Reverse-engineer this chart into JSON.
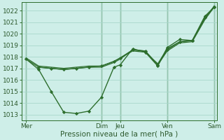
{
  "xlabel": "Pression niveau de la mer( hPa )",
  "bg_color": "#ceeee8",
  "grid_color": "#a8d8cc",
  "line_color": "#2d6e2d",
  "ylim": [
    1012.5,
    1022.7
  ],
  "yticks": [
    1013,
    1014,
    1015,
    1016,
    1017,
    1018,
    1019,
    1020,
    1021,
    1022
  ],
  "day_labels": [
    "Mer",
    "Dim",
    "Jeu",
    "Ven",
    "Sam"
  ],
  "day_positions": [
    0,
    48,
    60,
    90,
    120
  ],
  "vline_dark_positions": [
    0,
    48,
    60,
    90,
    120
  ],
  "xlim": [
    -3,
    122
  ],
  "series": [
    {
      "x": [
        0,
        8,
        16,
        24,
        32,
        40,
        48,
        56,
        60,
        68,
        76,
        84,
        90,
        98,
        106,
        114,
        120
      ],
      "y": [
        1017.8,
        1016.9,
        1015.0,
        1013.2,
        1013.1,
        1013.3,
        1014.5,
        1017.1,
        1017.3,
        1018.7,
        1018.4,
        1017.2,
        1018.8,
        1019.5,
        1019.4,
        1021.5,
        1022.3
      ],
      "has_markers": true,
      "lw": 1.0
    },
    {
      "x": [
        0,
        8,
        16,
        24,
        32,
        40,
        48,
        56,
        60,
        68,
        76,
        84,
        90,
        98,
        106,
        114,
        120
      ],
      "y": [
        1017.8,
        1017.1,
        1017.0,
        1016.9,
        1017.0,
        1017.1,
        1017.1,
        1017.5,
        1017.8,
        1018.6,
        1018.5,
        1017.3,
        1018.5,
        1019.2,
        1019.3,
        1021.2,
        1022.3
      ],
      "has_markers": false,
      "lw": 0.9
    },
    {
      "x": [
        0,
        8,
        16,
        24,
        32,
        40,
        48,
        56,
        60,
        68,
        76,
        84,
        90,
        98,
        106,
        114,
        120
      ],
      "y": [
        1017.9,
        1017.2,
        1017.1,
        1017.0,
        1017.1,
        1017.2,
        1017.2,
        1017.6,
        1017.9,
        1018.5,
        1018.4,
        1017.4,
        1018.7,
        1019.3,
        1019.4,
        1021.3,
        1022.4
      ],
      "has_markers": false,
      "lw": 0.9
    },
    {
      "x": [
        8,
        16,
        24,
        32,
        40,
        48,
        56,
        60,
        68,
        76,
        84,
        90,
        98,
        106,
        114,
        120
      ],
      "y": [
        1017.1,
        1017.0,
        1016.9,
        1017.0,
        1017.1,
        1017.2,
        1017.6,
        1017.9,
        1018.6,
        1018.5,
        1017.3,
        1018.6,
        1019.3,
        1019.4,
        1021.4,
        1022.3
      ],
      "has_markers": true,
      "lw": 1.0
    }
  ]
}
